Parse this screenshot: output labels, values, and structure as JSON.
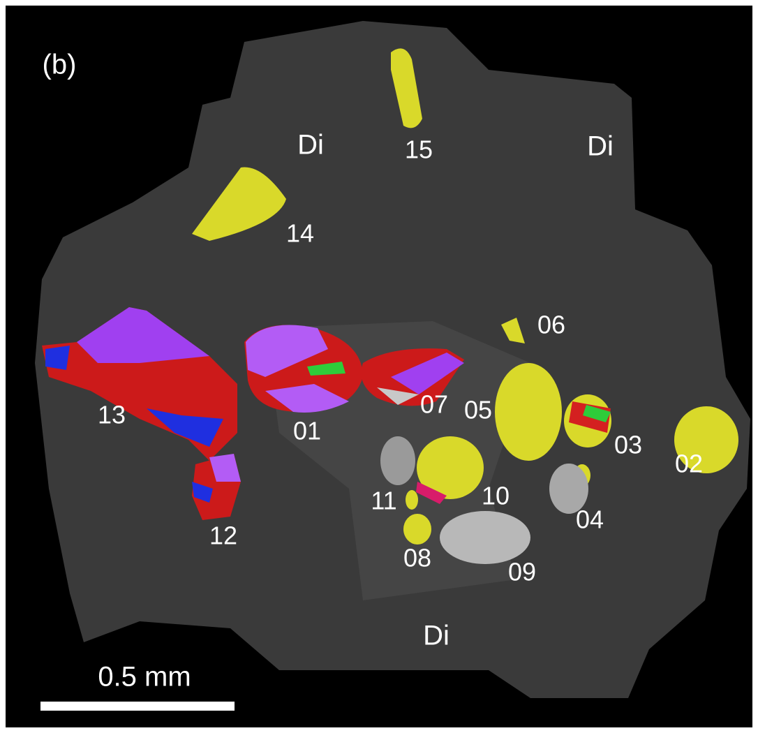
{
  "panel_label": "(b)",
  "phase_labels": [
    "Di",
    "Di",
    "Di"
  ],
  "grain_labels": [
    "15",
    "14",
    "06",
    "05",
    "03",
    "02",
    "07",
    "01",
    "13",
    "12",
    "10",
    "11",
    "04",
    "08",
    "09"
  ],
  "scale_bar": {
    "label": "0.5 mm"
  }
}
